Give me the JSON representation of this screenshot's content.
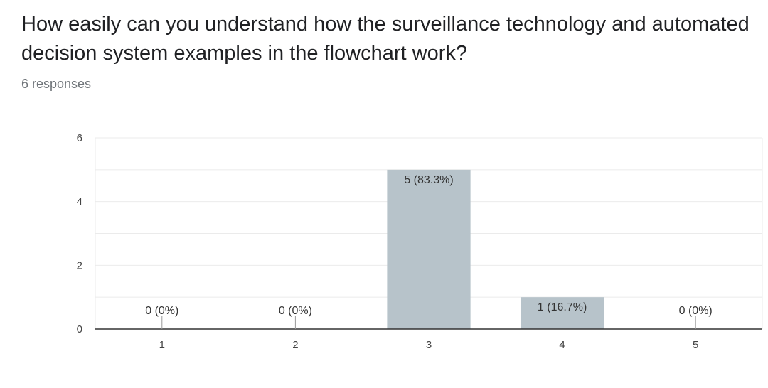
{
  "question": {
    "title": "How easily can you understand how the surveillance technology and automated decision system examples in the flowchart work?",
    "response_count": "6 responses"
  },
  "colors": {
    "bar": "#b7c3ca",
    "grid": "#ebebeb",
    "axis": "#333333",
    "text": "#202124",
    "muted": "#70757a"
  },
  "chart_data": {
    "type": "bar",
    "categories": [
      "1",
      "2",
      "3",
      "4",
      "5"
    ],
    "values": [
      0,
      0,
      5,
      1,
      0
    ],
    "data_labels": [
      "0 (0%)",
      "0 (0%)",
      "5 (83.3%)",
      "1 (16.7%)",
      "0 (0%)"
    ],
    "y_ticks": [
      0,
      2,
      4,
      6
    ],
    "ylim": [
      0,
      6
    ],
    "grid": true,
    "legend": "none"
  }
}
